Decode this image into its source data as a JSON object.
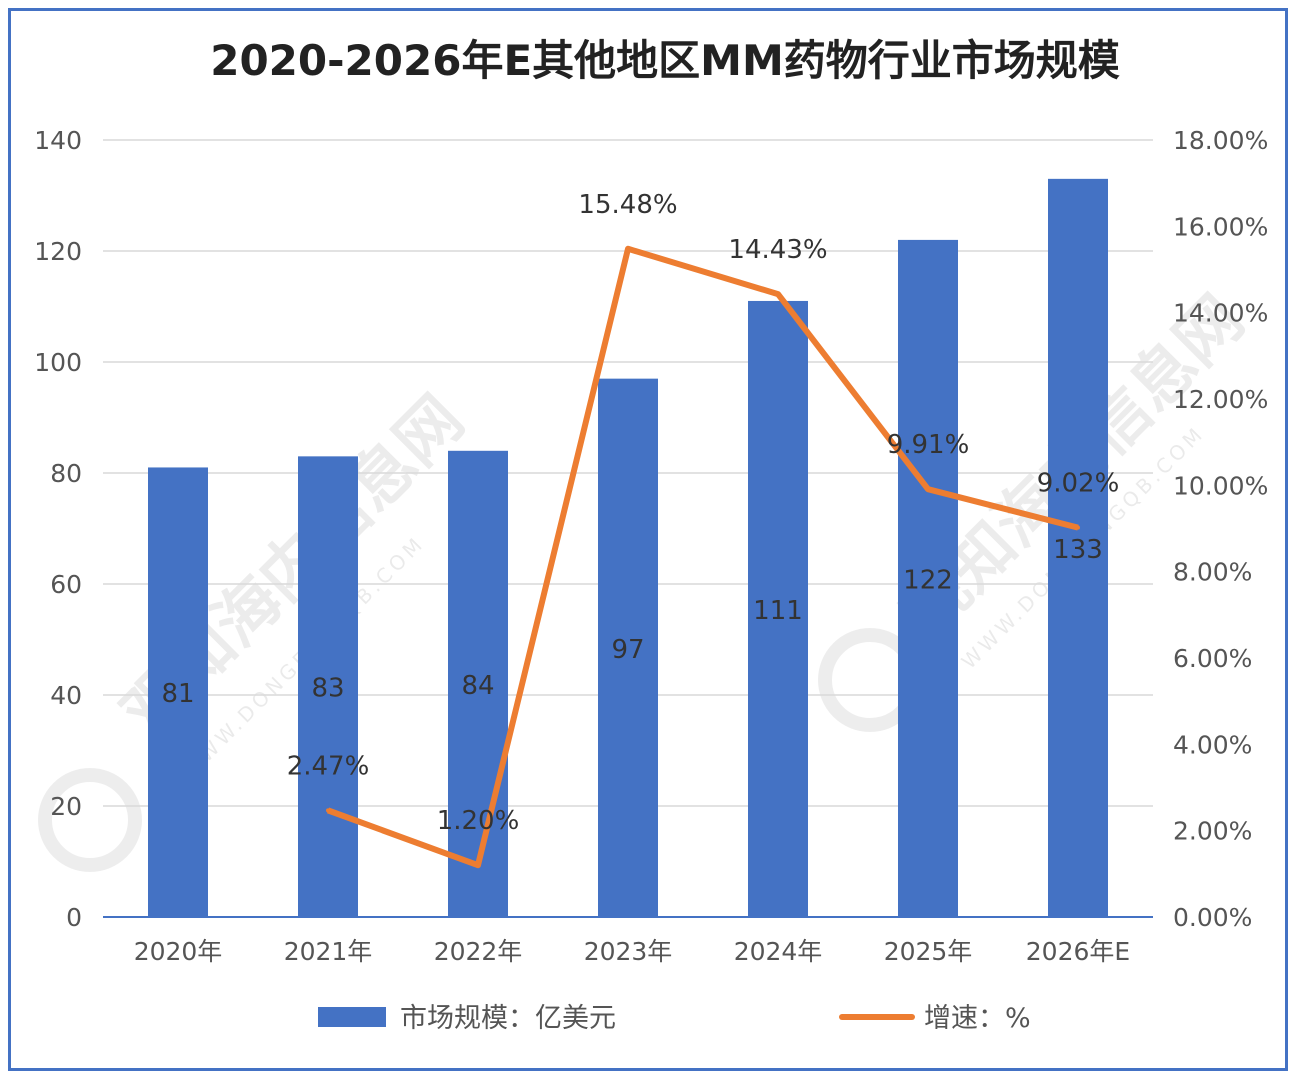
{
  "chart_data": {
    "type": "bar",
    "title": "2020-2026年E其他地区MM药物行业市场规模",
    "categories": [
      "2020年",
      "2021年",
      "2022年",
      "2023年",
      "2024年",
      "2025年",
      "2026年E"
    ],
    "series": [
      {
        "name": "市场规模：亿美元",
        "type": "bar",
        "axis": "left",
        "color": "#4472C4",
        "values": [
          81,
          83,
          84,
          97,
          111,
          122,
          133
        ],
        "labels": [
          "81",
          "83",
          "84",
          "97",
          "111",
          "122",
          "133"
        ]
      },
      {
        "name": "增速：%",
        "type": "line",
        "axis": "right",
        "color": "#ED7D31",
        "values": [
          null,
          2.47,
          1.2,
          15.48,
          14.43,
          9.91,
          9.02
        ],
        "labels": [
          "",
          "2.47%",
          "1.20%",
          "15.48%",
          "14.43%",
          "9.91%",
          "9.02%"
        ]
      }
    ],
    "y_left": {
      "range": [
        0,
        140
      ],
      "ticks": [
        "0",
        "20",
        "40",
        "60",
        "80",
        "100",
        "120",
        "140"
      ]
    },
    "y_right": {
      "range": [
        0,
        18
      ],
      "ticks": [
        "0.00%",
        "2.00%",
        "4.00%",
        "6.00%",
        "8.00%",
        "10.00%",
        "12.00%",
        "14.00%",
        "16.00%",
        "18.00%"
      ]
    },
    "grid": true,
    "legend": "bottom"
  },
  "watermark": {
    "text": "观知海内信息网",
    "url": "WWW.DONGFANGQB.COM"
  }
}
